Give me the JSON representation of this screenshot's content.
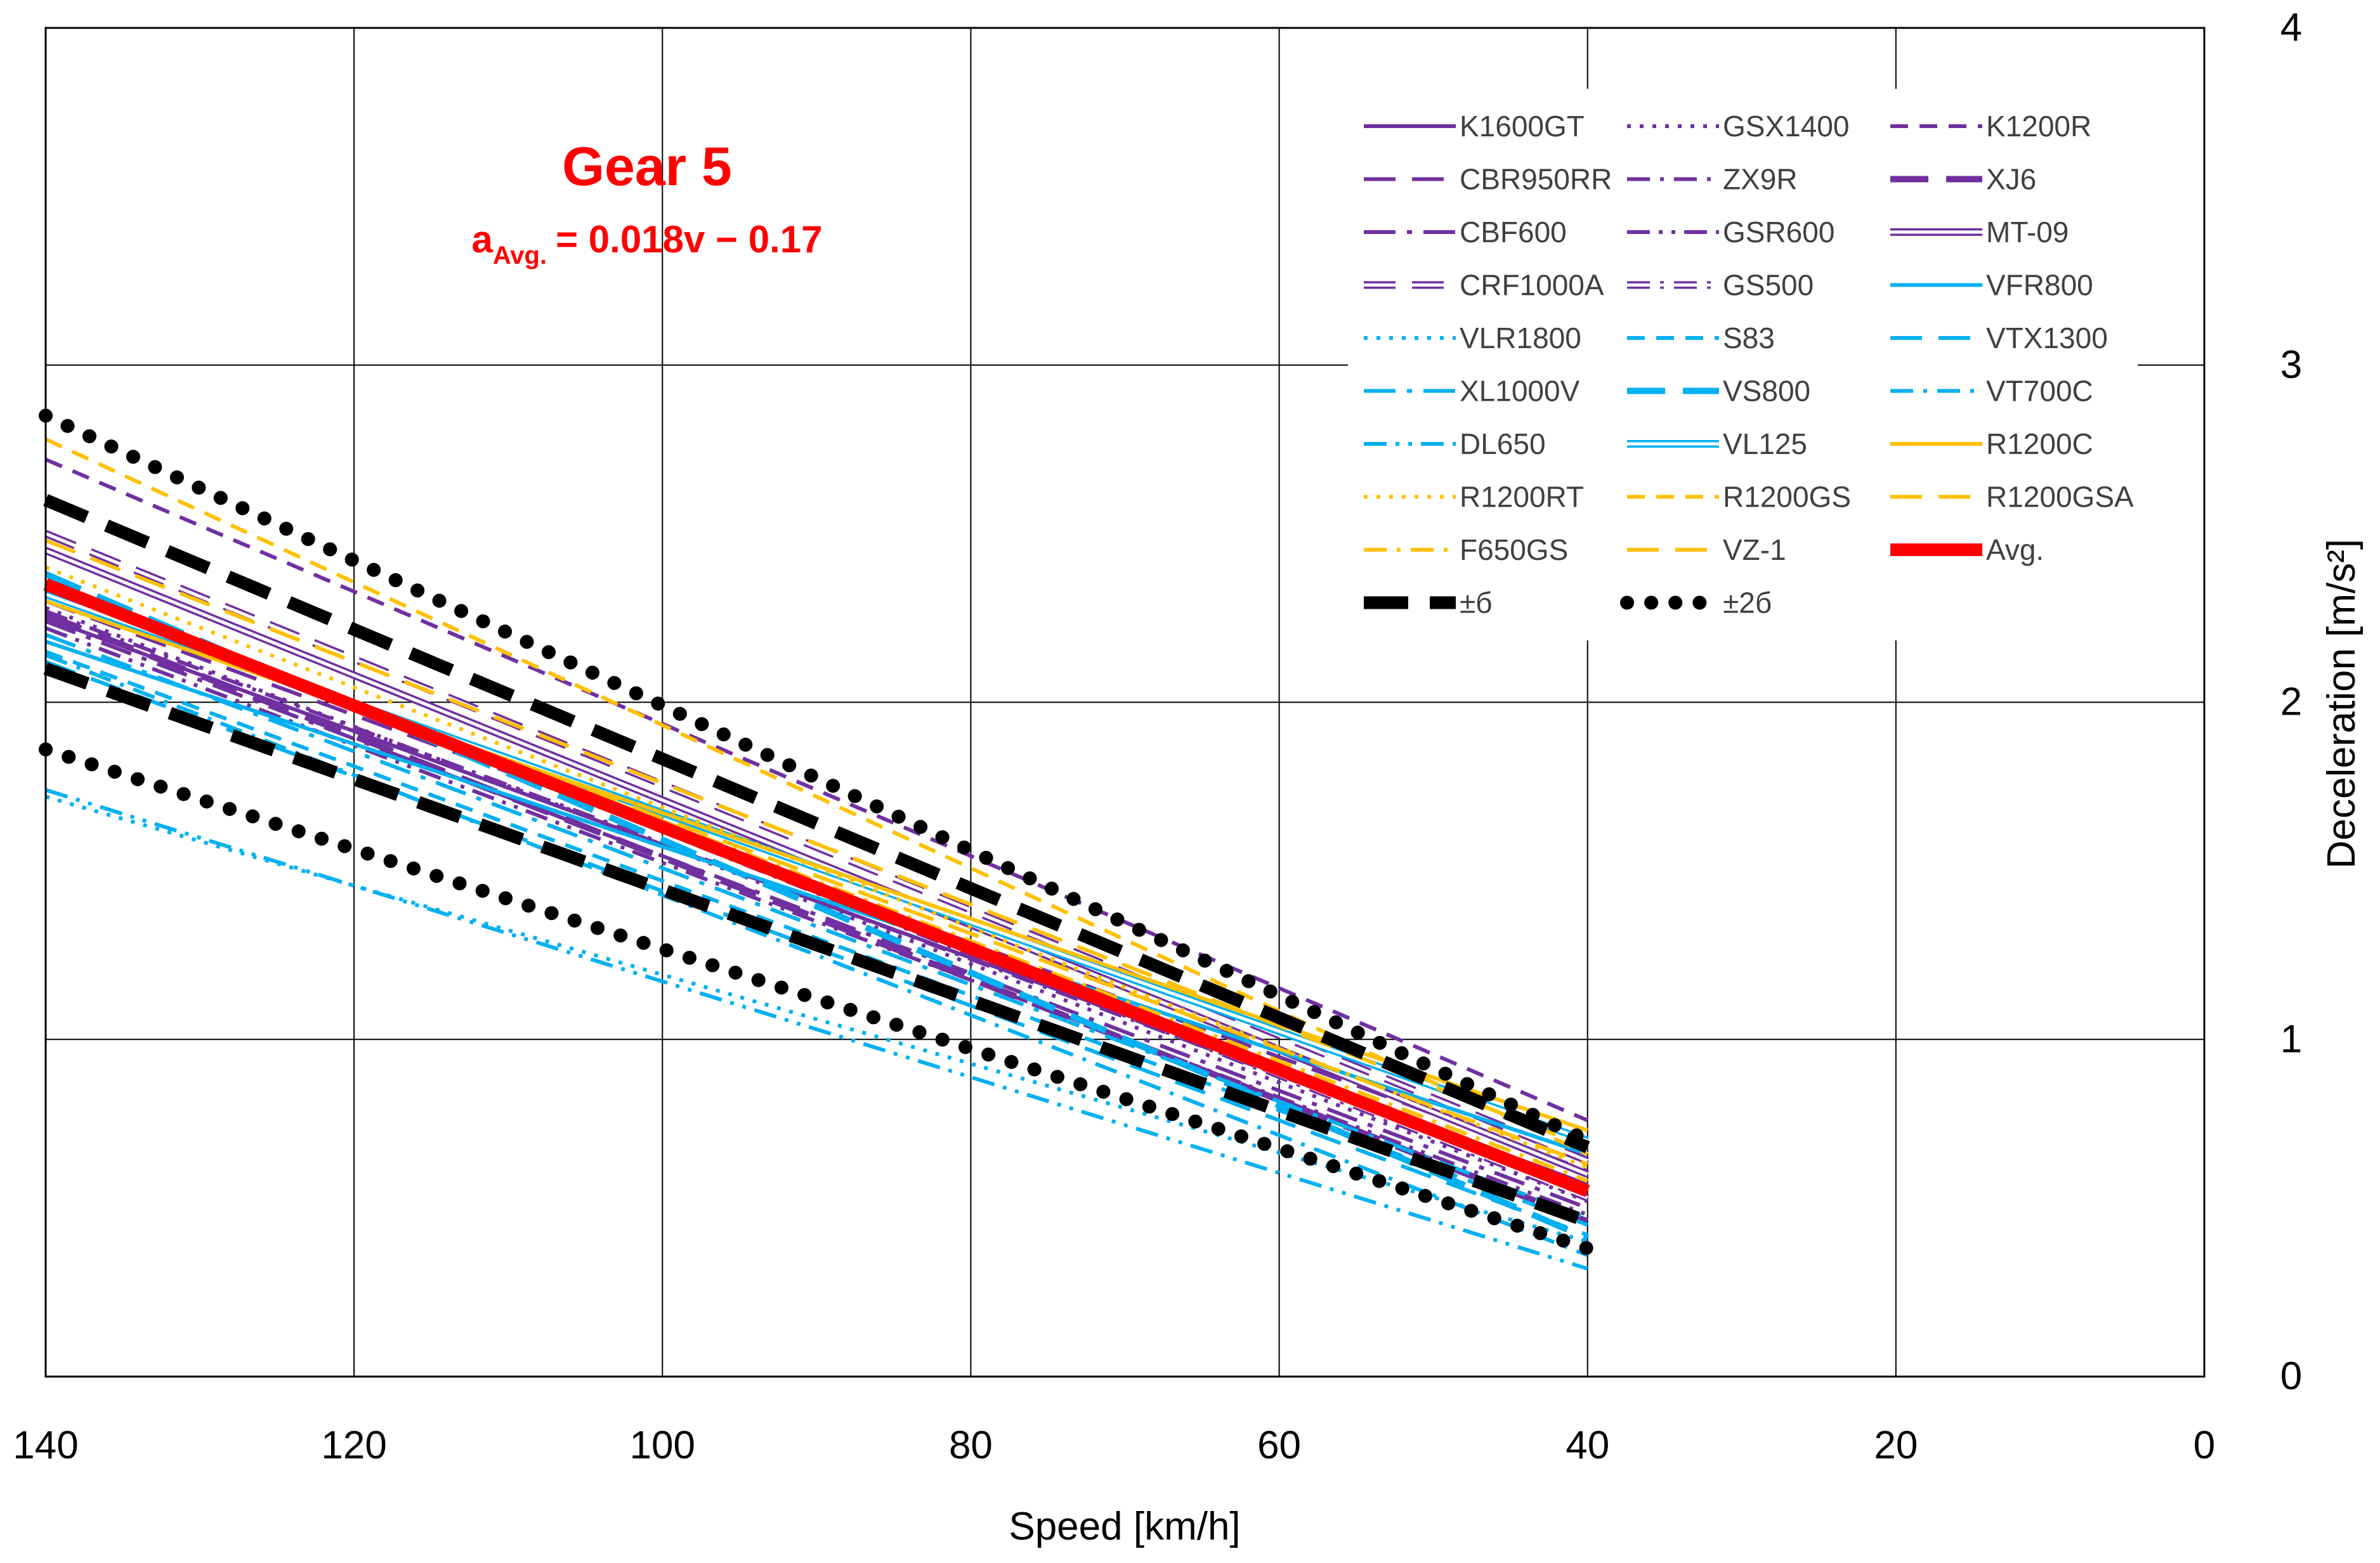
{
  "chart_data": {
    "type": "line",
    "title": "Gear 5",
    "equation": {
      "lhs_main": "a",
      "lhs_sub": "Avg.",
      "rhs": "= 0.018v − 0.17"
    },
    "xlabel": "Speed [km/h]",
    "ylabel": "Deceleration [m/s²]",
    "xlim": [
      0,
      140
    ],
    "ylim": [
      0,
      4
    ],
    "x_reversed": true,
    "x_ticks": [
      "140",
      "120",
      "100",
      "80",
      "60",
      "40",
      "20",
      "0"
    ],
    "y_ticks": [
      "0",
      "1",
      "2",
      "3",
      "4"
    ],
    "grid": true,
    "legend_position": "top-right",
    "series": [
      {
        "name": "K1600GT",
        "color": "#7030A0",
        "dash": "solid",
        "style": "normal",
        "values": [
          [
            140,
            2.25
          ],
          [
            40,
            0.57
          ]
        ]
      },
      {
        "name": "GSX1400",
        "color": "#7030A0",
        "dash": "dotted",
        "style": "normal",
        "values": [
          [
            140,
            2.28
          ],
          [
            40,
            0.52
          ]
        ]
      },
      {
        "name": "K1200R",
        "color": "#7030A0",
        "dash": "dashed",
        "style": "normal",
        "values": [
          [
            140,
            2.72
          ],
          [
            40,
            0.76
          ]
        ]
      },
      {
        "name": "CBR950RR",
        "color": "#7030A0",
        "dash": "longdash",
        "style": "normal",
        "values": [
          [
            140,
            2.3
          ],
          [
            40,
            0.61
          ]
        ]
      },
      {
        "name": "ZX9R",
        "color": "#7030A0",
        "dash": "dashdot",
        "style": "normal",
        "values": [
          [
            140,
            2.27
          ],
          [
            40,
            0.55
          ]
        ]
      },
      {
        "name": "XJ6",
        "color": "#7030A0",
        "dash": "longdashbold",
        "style": "normal",
        "values": [
          [
            140,
            2.26
          ],
          [
            40,
            0.46
          ]
        ]
      },
      {
        "name": "CBF600",
        "color": "#7030A0",
        "dash": "longdashdot",
        "style": "normal",
        "values": [
          [
            140,
            2.24
          ],
          [
            40,
            0.5
          ]
        ]
      },
      {
        "name": "GSR600",
        "color": "#7030A0",
        "dash": "dashdotdot",
        "style": "normal",
        "values": [
          [
            140,
            2.22
          ],
          [
            40,
            0.48
          ]
        ]
      },
      {
        "name": "MT-09",
        "color": "#7030A0",
        "dash": "solid",
        "style": "double",
        "values": [
          [
            140,
            2.45
          ],
          [
            40,
            0.6
          ]
        ]
      },
      {
        "name": "CRF1000A",
        "color": "#7030A0",
        "dash": "longdash",
        "style": "double",
        "values": [
          [
            140,
            2.5
          ],
          [
            40,
            0.64
          ]
        ]
      },
      {
        "name": "GS500",
        "color": "#7030A0",
        "dash": "dashdot",
        "style": "double",
        "values": [
          [
            140,
            2.35
          ],
          [
            40,
            0.53
          ]
        ]
      },
      {
        "name": "VFR800",
        "color": "#00B0F0",
        "dash": "solid",
        "style": "normal",
        "values": [
          [
            140,
            2.18
          ],
          [
            40,
            0.66
          ]
        ]
      },
      {
        "name": "VLR1800",
        "color": "#00B0F0",
        "dash": "dotted",
        "style": "normal",
        "values": [
          [
            140,
            1.72
          ],
          [
            40,
            0.4
          ]
        ]
      },
      {
        "name": "S83",
        "color": "#00B0F0",
        "dash": "dashed",
        "style": "normal",
        "values": [
          [
            140,
            2.15
          ],
          [
            40,
            0.45
          ]
        ]
      },
      {
        "name": "VTX1300",
        "color": "#00B0F0",
        "dash": "longdash",
        "style": "normal",
        "values": [
          [
            140,
            2.12
          ],
          [
            40,
            0.42
          ]
        ]
      },
      {
        "name": "XL1000V",
        "color": "#00B0F0",
        "dash": "longdashdot",
        "style": "normal",
        "values": [
          [
            140,
            2.2
          ],
          [
            40,
            0.47
          ]
        ]
      },
      {
        "name": "VS800",
        "color": "#00B0F0",
        "dash": "longdashbold",
        "style": "normal",
        "values": [
          [
            140,
            2.38
          ],
          [
            40,
            0.41
          ]
        ]
      },
      {
        "name": "VT700C",
        "color": "#00B0F0",
        "dash": "dashdot",
        "style": "normal",
        "values": [
          [
            140,
            2.14
          ],
          [
            40,
            0.36
          ]
        ]
      },
      {
        "name": "DL650",
        "color": "#00B0F0",
        "dash": "dashdotdot",
        "style": "normal",
        "values": [
          [
            140,
            1.74
          ],
          [
            40,
            0.32
          ]
        ]
      },
      {
        "name": "VL125",
        "color": "#00B0F0",
        "dash": "solid",
        "style": "double",
        "values": [
          [
            140,
            2.32
          ],
          [
            40,
            0.7
          ]
        ]
      },
      {
        "name": "R1200C",
        "color": "#FFC000",
        "dash": "solid",
        "style": "normal",
        "values": [
          [
            140,
            2.3
          ],
          [
            40,
            0.73
          ]
        ]
      },
      {
        "name": "R1200RT",
        "color": "#FFC000",
        "dash": "dotted",
        "style": "normal",
        "values": [
          [
            140,
            2.4
          ],
          [
            40,
            0.62
          ]
        ]
      },
      {
        "name": "R1200GS",
        "color": "#FFC000",
        "dash": "dashed",
        "style": "normal",
        "values": [
          [
            140,
            2.78
          ],
          [
            40,
            0.66
          ]
        ]
      },
      {
        "name": "R1200GSA",
        "color": "#FFC000",
        "dash": "longdash",
        "style": "normal",
        "values": [
          [
            140,
            2.48
          ],
          [
            40,
            0.68
          ]
        ]
      },
      {
        "name": "F650GS",
        "color": "#FFC000",
        "dash": "dashdot",
        "style": "normal",
        "values": [
          [
            140,
            2.36
          ],
          [
            40,
            0.58
          ]
        ]
      },
      {
        "name": "VZ-1",
        "color": "#FFC000",
        "dash": "longdash",
        "style": "normal",
        "values": [
          [
            140,
            2.34
          ],
          [
            40,
            0.63
          ]
        ]
      },
      {
        "name": "Avg.",
        "color": "#FF0000",
        "dash": "solid",
        "style": "thick",
        "values": [
          [
            140,
            2.35
          ],
          [
            40,
            0.55
          ]
        ]
      },
      {
        "name": "±б",
        "color": "#000000",
        "dash": "heavydash",
        "style": "thick",
        "values": [
          [
            140,
            2.6
          ],
          [
            40,
            0.68
          ]
        ],
        "lower": [
          [
            140,
            2.1
          ],
          [
            40,
            0.46
          ]
        ]
      },
      {
        "name": "±2б",
        "color": "#000000",
        "dash": "heavydot",
        "style": "thick",
        "values": [
          [
            140,
            2.85
          ],
          [
            40,
            0.7
          ]
        ],
        "lower": [
          [
            140,
            1.86
          ],
          [
            40,
            0.38
          ]
        ]
      }
    ]
  }
}
